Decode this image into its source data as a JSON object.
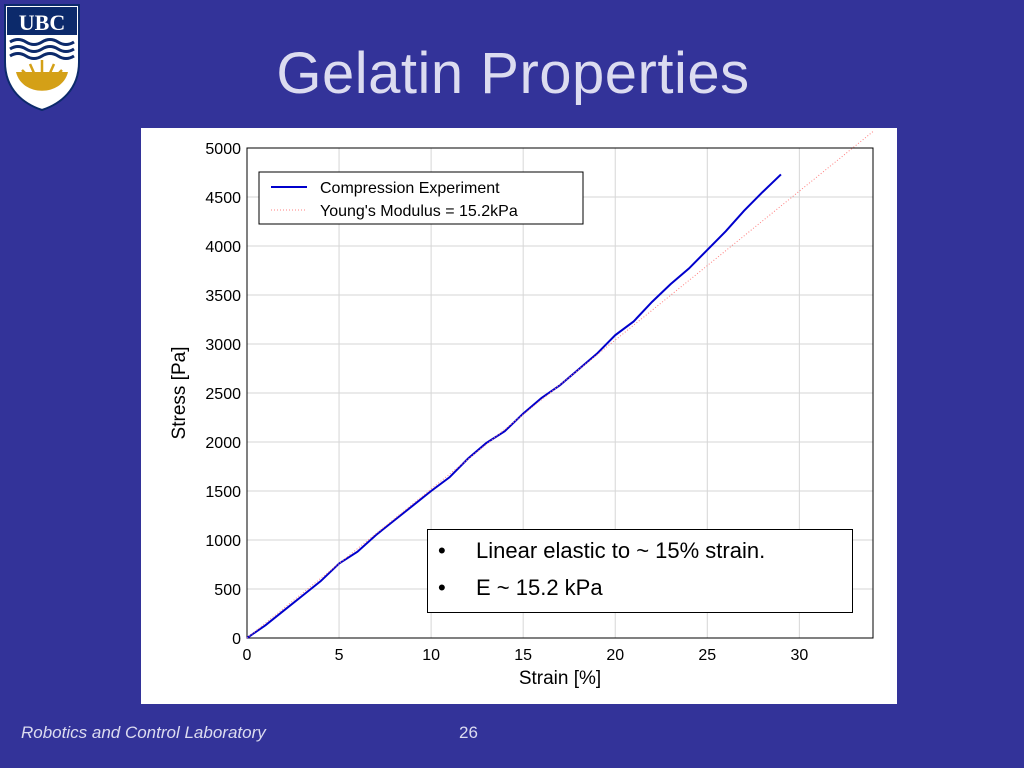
{
  "slide": {
    "title": "Gelatin Properties",
    "logo_text": "UBC",
    "footer_left": "Robotics and Control Laboratory",
    "page_number": "26",
    "colors": {
      "background": "#333399",
      "title": "#dcdcf0",
      "logo_gold": "#d4a017",
      "logo_blue": "#0c2a6b"
    }
  },
  "notes": [
    {
      "bullet": "•",
      "text": "Linear elastic to ~ 15% strain."
    },
    {
      "bullet": "•",
      "text": "E ~ 15.2 kPa"
    }
  ],
  "chart_data": {
    "type": "line",
    "xlabel": "Strain [%]",
    "ylabel": "Stress [Pa]",
    "xlim": [
      0,
      34
    ],
    "ylim": [
      0,
      5000
    ],
    "xticks": [
      0,
      5,
      10,
      15,
      20,
      25,
      30
    ],
    "yticks": [
      0,
      500,
      1000,
      1500,
      2000,
      2500,
      3000,
      3500,
      4000,
      4500,
      5000
    ],
    "grid": true,
    "legend_position": "top-left",
    "series": [
      {
        "name": "Compression Experiment",
        "color": "#0000cc",
        "style": "solid",
        "x": [
          0,
          1,
          2,
          3,
          4,
          5,
          6,
          7,
          8,
          9,
          10,
          11,
          12,
          13,
          14,
          15,
          16,
          17,
          18,
          19,
          20,
          21,
          22,
          23,
          24,
          25,
          26,
          27,
          28,
          29
        ],
        "y": [
          0,
          130,
          280,
          430,
          580,
          760,
          880,
          1050,
          1200,
          1350,
          1500,
          1640,
          1830,
          1990,
          2110,
          2290,
          2450,
          2580,
          2740,
          2900,
          3090,
          3230,
          3430,
          3610,
          3770,
          3960,
          4150,
          4360,
          4550,
          4730
        ]
      },
      {
        "name": "Young's Modulus = 15.2kPa",
        "color": "#ff8080",
        "style": "dotted",
        "x": [
          0,
          34
        ],
        "y": [
          0,
          5168
        ]
      }
    ]
  }
}
